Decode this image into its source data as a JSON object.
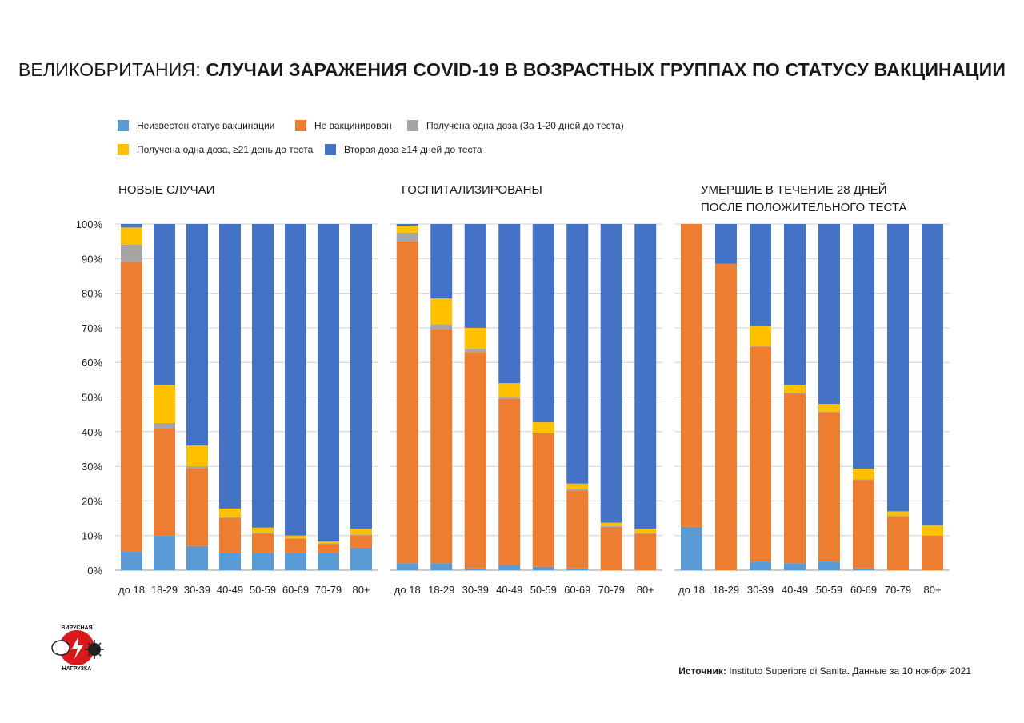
{
  "title": {
    "prefix": "ВЕЛИКОБРИТАНИЯ:",
    "main": "СЛУЧАИ ЗАРАЖЕНИЯ COVID-19 В ВОЗРАСТНЫХ ГРУППАХ ПО СТАТУСУ ВАКЦИНАЦИИ"
  },
  "legend": [
    {
      "label": "Неизвестен статус вакцинации",
      "color": "#5b9bd5"
    },
    {
      "label": "Не вакцинирован",
      "color": "#ed7d31"
    },
    {
      "label": "Получена одна доза (За 1-20 дней до теста)",
      "color": "#a5a5a5"
    },
    {
      "label": "Получена одна доза, ≥21 день до теста",
      "color": "#ffc000"
    },
    {
      "label": "Вторая доза ≥14 дней  до теста",
      "color": "#4472c4"
    }
  ],
  "panels": {
    "new_cases": "НОВЫЕ СЛУЧАИ",
    "hospitalized": "ГОСПИТАЛИЗИРОВАНЫ",
    "deaths": "УМЕРШИЕ В ТЕЧЕНИЕ 28 ДНЕЙ ПОСЛЕ ПОЛОЖИТЕЛЬНОГО ТЕСТА"
  },
  "chart_data": [
    {
      "type": "bar",
      "stacked": true,
      "title": "НОВЫЕ СЛУЧАИ",
      "categories": [
        "до 18",
        "18-29",
        "30-39",
        "40-49",
        "50-59",
        "60-69",
        "70-79",
        "80+"
      ],
      "y_ticks": [
        "0%",
        "10%",
        "20%",
        "30%",
        "40%",
        "50%",
        "60%",
        "70%",
        "80%",
        "90%",
        "100%"
      ],
      "ylim": [
        0,
        100
      ],
      "grid": true,
      "series": [
        {
          "name": "Неизвестен статус вакцинации",
          "values": [
            5.5,
            10,
            7,
            5,
            5,
            5,
            5,
            6.5
          ]
        },
        {
          "name": "Не вакцинирован",
          "values": [
            83.5,
            31,
            22.5,
            10,
            5.5,
            4,
            2.5,
            3.5
          ]
        },
        {
          "name": "Получена одна доза (За 1-20 дней до теста)",
          "values": [
            5,
            1.5,
            0.5,
            0.3,
            0.3,
            0.3,
            0.3,
            0.3
          ]
        },
        {
          "name": "Получена одна доза, ≥21 день до теста",
          "values": [
            5,
            11,
            6,
            2.5,
            1.5,
            0.7,
            0.5,
            1.7
          ]
        },
        {
          "name": "Вторая доза ≥14 дней  до теста",
          "values": [
            1,
            46.5,
            64,
            82.2,
            87.7,
            90,
            91.7,
            88
          ]
        }
      ]
    },
    {
      "type": "bar",
      "stacked": true,
      "title": "ГОСПИТАЛИЗИРОВАНЫ",
      "categories": [
        "до 18",
        "18-29",
        "30-39",
        "40-49",
        "50-59",
        "60-69",
        "70-79",
        "80+"
      ],
      "ylim": [
        0,
        100
      ],
      "grid": true,
      "series": [
        {
          "name": "Неизвестен статус вакцинации",
          "values": [
            2,
            2,
            0.5,
            1.5,
            1,
            0.5,
            0,
            0
          ]
        },
        {
          "name": "Не вакцинирован",
          "values": [
            93,
            67.5,
            62.5,
            48,
            38.5,
            22.5,
            12.5,
            10.5
          ]
        },
        {
          "name": "Получена одна доза (За 1-20 дней до теста)",
          "values": [
            2.5,
            1.5,
            1,
            0.5,
            0.2,
            0.5,
            0.2,
            0.2
          ]
        },
        {
          "name": "Получена одна доза, ≥21 день до теста",
          "values": [
            2,
            7.5,
            6,
            4,
            3,
            1.5,
            1,
            1.3
          ]
        },
        {
          "name": "Вторая доза ≥14 дней  до теста",
          "values": [
            0.5,
            21.5,
            30,
            46,
            57.3,
            75,
            86.3,
            88
          ]
        }
      ]
    },
    {
      "type": "bar",
      "stacked": true,
      "title": "УМЕРШИЕ В ТЕЧЕНИЕ 28 ДНЕЙ ПОСЛЕ ПОЛОЖИТЕЛЬНОГО ТЕСТА",
      "categories": [
        "до 18",
        "18-29",
        "30-39",
        "40-49",
        "50-59",
        "60-69",
        "70-79",
        "80+"
      ],
      "ylim": [
        0,
        100
      ],
      "grid": true,
      "series": [
        {
          "name": "Неизвестен статус вакцинации",
          "values": [
            12.5,
            0,
            2.5,
            2,
            2.5,
            0.5,
            0,
            0
          ]
        },
        {
          "name": "Не вакцинирован",
          "values": [
            87.5,
            88.5,
            62,
            49,
            43,
            25.5,
            15.5,
            10
          ]
        },
        {
          "name": "Получена одна доза (За 1-20 дней до теста)",
          "values": [
            0,
            0,
            0.3,
            0.3,
            0.3,
            0.3,
            0.3,
            0
          ]
        },
        {
          "name": "Получена одна доза, ≥21 день до теста",
          "values": [
            0,
            0,
            5.7,
            2.2,
            2.2,
            3,
            1.2,
            3
          ]
        },
        {
          "name": "Вторая доза ≥14 дней  до теста",
          "values": [
            0,
            11.5,
            29.5,
            46.5,
            52,
            70.7,
            83,
            87
          ]
        }
      ]
    }
  ],
  "logo": {
    "text_top": "ВИРУСНАЯ",
    "text_bottom": "НАГРУЗКА"
  },
  "source": {
    "label": "Источник:",
    "text": "Instituto Superiore di Sanita. Данные за 10 ноября 2021"
  }
}
